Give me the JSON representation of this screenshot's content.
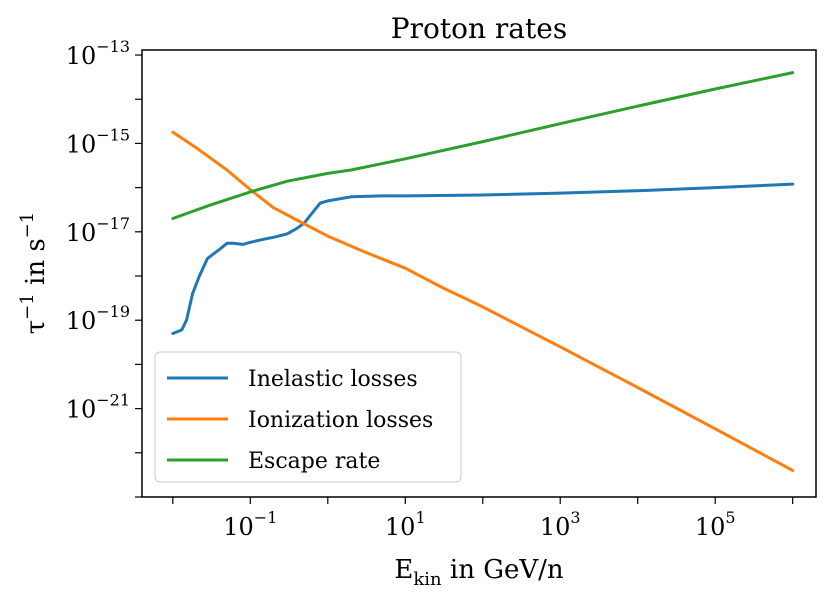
{
  "chart_data": {
    "type": "line",
    "title": "Proton rates",
    "xlabel": {
      "base": "E",
      "sub": "kin",
      "rest": " in GeV/n"
    },
    "ylabel": {
      "tau": "τ",
      "tau_sup": "−1",
      "mid": " in s",
      "s_sup": "−1"
    },
    "x_scale": "log",
    "y_scale": "log",
    "xlim": [
      0.004,
      2000000
    ],
    "ylim": [
      1e-23,
      1.3e-13
    ],
    "x_ticks": [
      {
        "value": 0.1,
        "base": "10",
        "exp": "−1"
      },
      {
        "value": 10,
        "base": "10",
        "exp": "1"
      },
      {
        "value": 1000,
        "base": "10",
        "exp": "3"
      },
      {
        "value": 100000,
        "base": "10",
        "exp": "5"
      }
    ],
    "y_ticks": [
      {
        "value": 1e-13,
        "base": "10",
        "exp": "−13"
      },
      {
        "value": 1e-15,
        "base": "10",
        "exp": "−15"
      },
      {
        "value": 1e-17,
        "base": "10",
        "exp": "−17"
      },
      {
        "value": 1e-19,
        "base": "10",
        "exp": "−19"
      },
      {
        "value": 1e-21,
        "base": "10",
        "exp": "−21"
      }
    ],
    "grid": false,
    "legend_position": "lower-left",
    "series": [
      {
        "name": "Inelastic losses",
        "color": "#1f77b4",
        "points": [
          [
            0.01,
            5e-20
          ],
          [
            0.013,
            6e-20
          ],
          [
            0.015,
            1e-19
          ],
          [
            0.018,
            4e-19
          ],
          [
            0.022,
            1e-18
          ],
          [
            0.028,
            2.5e-18
          ],
          [
            0.04,
            4e-18
          ],
          [
            0.05,
            5.5e-18
          ],
          [
            0.06,
            5.5e-18
          ],
          [
            0.08,
            5.2e-18
          ],
          [
            0.1,
            5.8e-18
          ],
          [
            0.15,
            6.8e-18
          ],
          [
            0.2,
            7.5e-18
          ],
          [
            0.3,
            9e-18
          ],
          [
            0.4,
            1.2e-17
          ],
          [
            0.5,
            1.6e-17
          ],
          [
            0.6,
            2.4e-17
          ],
          [
            0.8,
            4.5e-17
          ],
          [
            1,
            5e-17
          ],
          [
            2,
            6.2e-17
          ],
          [
            5,
            6.5e-17
          ],
          [
            10,
            6.5e-17
          ],
          [
            100,
            6.8e-17
          ],
          [
            1000,
            7.5e-17
          ],
          [
            10000,
            8.5e-17
          ],
          [
            100000,
            1e-16
          ],
          [
            1000000,
            1.2e-16
          ]
        ]
      },
      {
        "name": "Ionization losses",
        "color": "#ff7f0e",
        "points": [
          [
            0.01,
            1.8e-15
          ],
          [
            0.02,
            8e-16
          ],
          [
            0.05,
            2.5e-16
          ],
          [
            0.1,
            9e-17
          ],
          [
            0.2,
            3.5e-17
          ],
          [
            0.5,
            1.5e-17
          ],
          [
            1,
            8e-18
          ],
          [
            3,
            3.5e-18
          ],
          [
            10,
            1.5e-18
          ],
          [
            30,
            5.5e-19
          ],
          [
            100,
            2e-19
          ],
          [
            1000,
            2.5e-20
          ],
          [
            10000,
            3e-21
          ],
          [
            100000,
            3.5e-22
          ],
          [
            1000000,
            4e-23
          ]
        ]
      },
      {
        "name": "Escape rate",
        "color": "#2ca02c",
        "points": [
          [
            0.01,
            2e-17
          ],
          [
            0.03,
            4e-17
          ],
          [
            0.1,
            8e-17
          ],
          [
            0.3,
            1.4e-16
          ],
          [
            1,
            2.1e-16
          ],
          [
            2,
            2.5e-16
          ],
          [
            10,
            4.5e-16
          ],
          [
            100,
            1.1e-15
          ],
          [
            1000,
            2.8e-15
          ],
          [
            10000,
            7e-15
          ],
          [
            100000,
            1.7e-14
          ],
          [
            1000000,
            4e-14
          ]
        ]
      }
    ]
  }
}
